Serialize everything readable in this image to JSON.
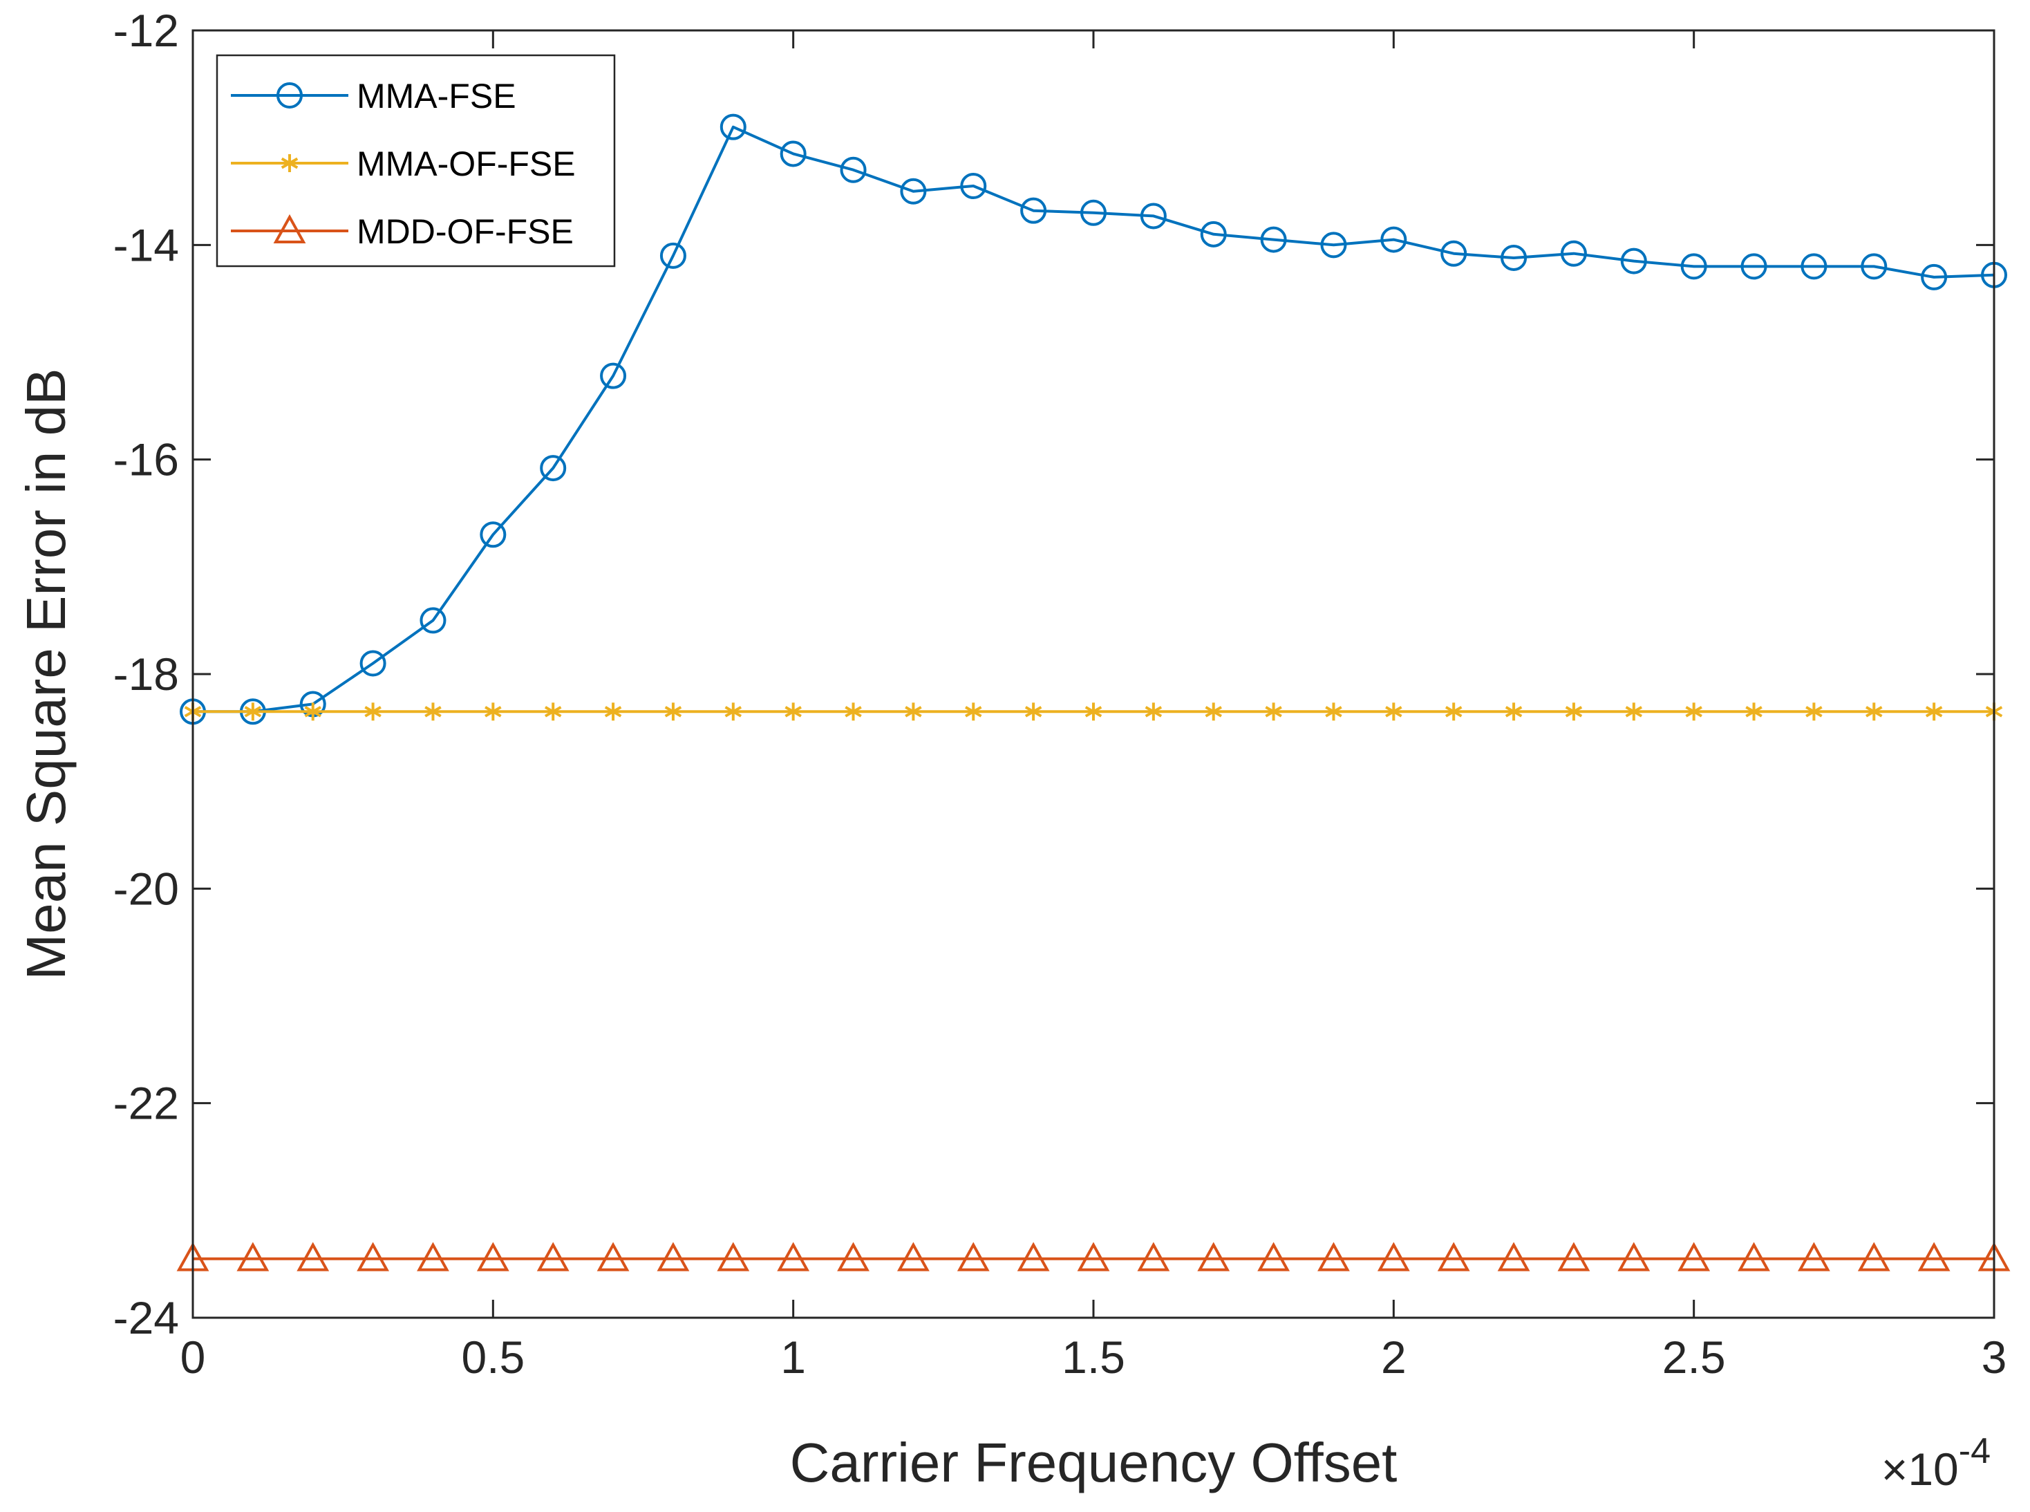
{
  "chart_data": {
    "type": "line",
    "title": "",
    "xlabel": "Carrier Frequency Offset",
    "ylabel": "Mean Square Error in dB",
    "x_exponent_label": {
      "base": "×10",
      "exponent": "-4"
    },
    "xlim": [
      0,
      3
    ],
    "ylim": [
      -24,
      -12
    ],
    "xticks": [
      0,
      0.5,
      1,
      1.5,
      2,
      2.5,
      3
    ],
    "xtick_labels": [
      "0",
      "0.5",
      "1",
      "1.5",
      "2",
      "2.5",
      "3"
    ],
    "yticks": [
      -24,
      -22,
      -20,
      -18,
      -16,
      -14,
      -12
    ],
    "ytick_labels": [
      "-24",
      "-22",
      "-20",
      "-18",
      "-16",
      "-14",
      "-12"
    ],
    "grid": false,
    "legend_position": "top-left",
    "x": [
      0,
      0.1,
      0.2,
      0.3,
      0.4,
      0.5,
      0.6,
      0.7,
      0.8,
      0.9,
      1.0,
      1.1,
      1.2,
      1.3,
      1.4,
      1.5,
      1.6,
      1.7,
      1.8,
      1.9,
      2.0,
      2.1,
      2.2,
      2.3,
      2.4,
      2.5,
      2.6,
      2.7,
      2.8,
      2.9,
      3.0
    ],
    "series": [
      {
        "name": "MMA-FSE",
        "color": "#0072BD",
        "marker": "circle",
        "values": [
          -18.35,
          -18.35,
          -18.28,
          -17.9,
          -17.5,
          -16.7,
          -16.08,
          -15.22,
          -14.1,
          -12.9,
          -13.15,
          -13.3,
          -13.5,
          -13.45,
          -13.68,
          -13.7,
          -13.73,
          -13.9,
          -13.95,
          -14.0,
          -13.95,
          -14.08,
          -14.12,
          -14.08,
          -14.15,
          -14.2,
          -14.2,
          -14.2,
          -14.2,
          -14.3,
          -14.28
        ]
      },
      {
        "name": "MMA-OF-FSE",
        "color": "#EDB120",
        "marker": "asterisk",
        "values": [
          -18.35,
          -18.35,
          -18.35,
          -18.35,
          -18.35,
          -18.35,
          -18.35,
          -18.35,
          -18.35,
          -18.35,
          -18.35,
          -18.35,
          -18.35,
          -18.35,
          -18.35,
          -18.35,
          -18.35,
          -18.35,
          -18.35,
          -18.35,
          -18.35,
          -18.35,
          -18.35,
          -18.35,
          -18.35,
          -18.35,
          -18.35,
          -18.35,
          -18.35,
          -18.35,
          -18.35
        ]
      },
      {
        "name": "MDD-OF-FSE",
        "color": "#D95319",
        "marker": "triangle",
        "values": [
          -23.45,
          -23.45,
          -23.45,
          -23.45,
          -23.45,
          -23.45,
          -23.45,
          -23.45,
          -23.45,
          -23.45,
          -23.45,
          -23.45,
          -23.45,
          -23.45,
          -23.45,
          -23.45,
          -23.45,
          -23.45,
          -23.45,
          -23.45,
          -23.45,
          -23.45,
          -23.45,
          -23.45,
          -23.45,
          -23.45,
          -23.45,
          -23.45,
          -23.45,
          -23.45,
          -23.45
        ]
      }
    ]
  }
}
